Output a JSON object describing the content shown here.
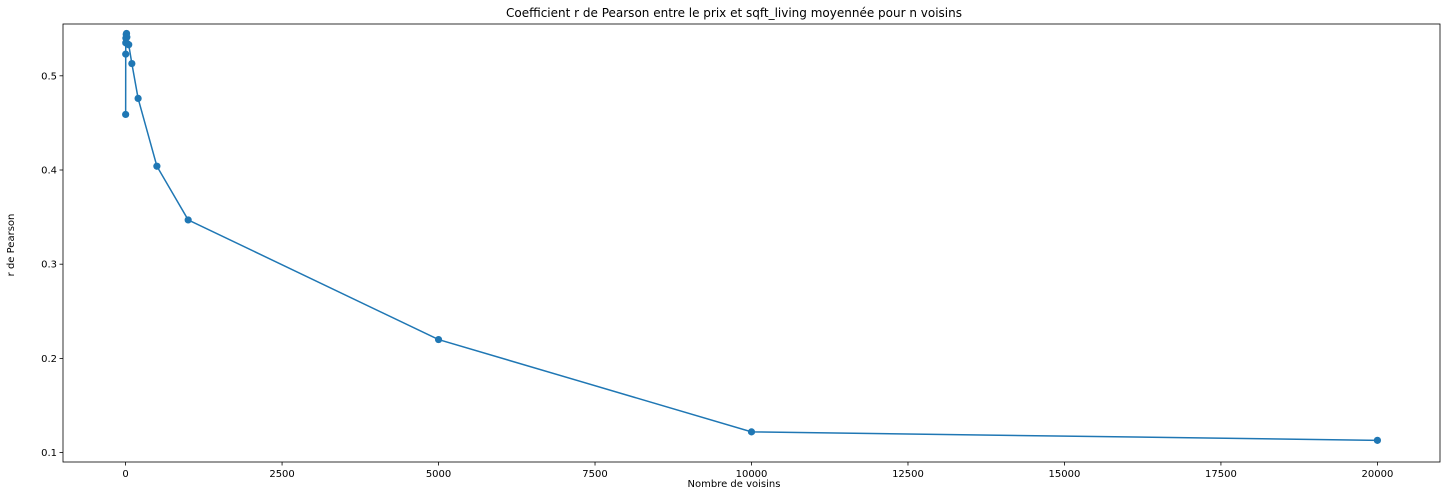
{
  "chart_data": {
    "type": "line",
    "title": "Coefficient r de Pearson entre le prix et sqft_living moyennée pour n voisins",
    "xlabel": "Nombre de voisins",
    "ylabel": "r de Pearson",
    "xlim": [
      -1000,
      21000
    ],
    "ylim": [
      0.09,
      0.555
    ],
    "x_ticks": [
      0,
      2500,
      5000,
      7500,
      10000,
      12500,
      15000,
      17500,
      20000
    ],
    "y_ticks": [
      0.1,
      0.2,
      0.3,
      0.4,
      0.5
    ],
    "y_tick_labels": [
      "0.1",
      "0.2",
      "0.3",
      "0.4",
      "0.5"
    ],
    "grid": false,
    "series": [
      {
        "color": "#1f77b4",
        "marker": "circle",
        "x": [
          1,
          2,
          3,
          5,
          10,
          15,
          20,
          30,
          50,
          100,
          200,
          500,
          1000,
          5000,
          10000,
          20000
        ],
        "y": [
          0.459,
          0.523,
          0.535,
          0.54,
          0.544,
          0.545,
          0.541,
          0.534,
          0.533,
          0.513,
          0.476,
          0.404,
          0.347,
          0.22,
          0.122,
          0.113
        ]
      }
    ]
  }
}
